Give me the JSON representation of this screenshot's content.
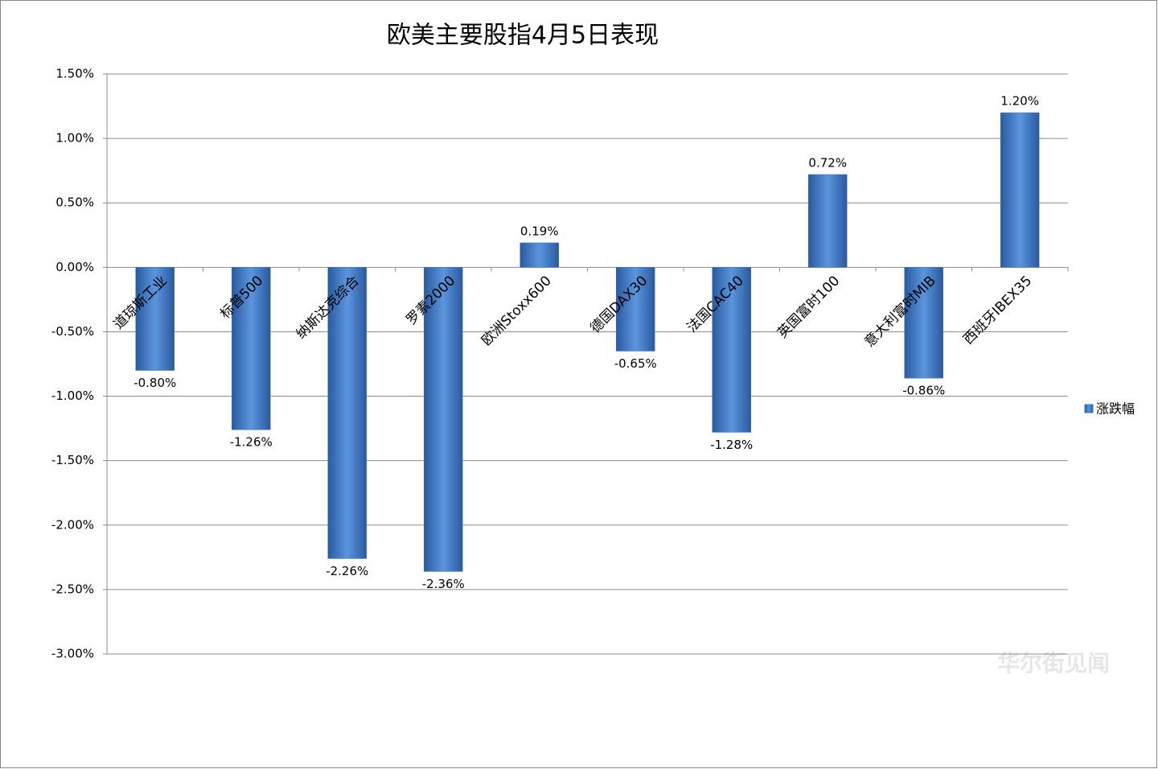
{
  "chart_data": {
    "type": "bar",
    "title": "欧美主要股指4月5日表现",
    "categories": [
      "道琼斯工业",
      "标普500",
      "纳斯达克综合",
      "罗素2000",
      "欧洲Stoxx600",
      "德国DAX30",
      "法国CAC40",
      "英国富时100",
      "意大利富时MIB",
      "西班牙IBEX35"
    ],
    "series": [
      {
        "name": "涨跌幅",
        "color": "#3a73c2",
        "values": [
          -0.8,
          -1.26,
          -2.26,
          -2.36,
          0.19,
          -0.65,
          -1.28,
          0.72,
          -0.86,
          1.2
        ],
        "value_labels": [
          "-0.80%",
          "-1.26%",
          "-2.26%",
          "-2.36%",
          "0.19%",
          "-0.65%",
          "-1.28%",
          "0.72%",
          "-0.86%",
          "1.20%"
        ]
      }
    ],
    "ylim": [
      -3,
      1.5
    ],
    "yticks": [
      {
        "value": 1.5,
        "label": "1.50%"
      },
      {
        "value": 1,
        "label": "1.00%"
      },
      {
        "value": 0.5,
        "label": "0.50%"
      },
      {
        "value": 0,
        "label": "0.00%"
      },
      {
        "value": -0.5,
        "label": "-0.50%"
      },
      {
        "value": -1,
        "label": "-1.00%"
      },
      {
        "value": -1.5,
        "label": "-1.50%"
      },
      {
        "value": -2,
        "label": "-2.00%"
      },
      {
        "value": -2.5,
        "label": "-2.50%"
      },
      {
        "value": -3,
        "label": "-3.00%"
      }
    ],
    "grid": true,
    "legend": "right",
    "watermark": "华尔街见闻"
  }
}
